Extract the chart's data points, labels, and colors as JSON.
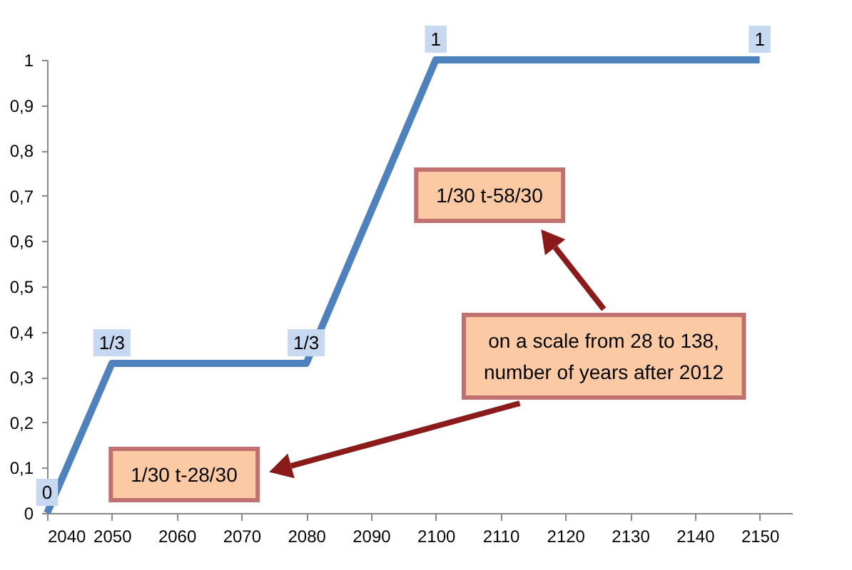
{
  "chart_data": {
    "type": "line",
    "x": [
      2040,
      2050,
      2080,
      2100,
      2150
    ],
    "series": [
      {
        "color": "#4f81bd",
        "values": [
          0,
          0.33,
          0.33,
          1,
          1
        ],
        "value_labels": [
          "0",
          "1/3",
          "1/3",
          "1",
          "1"
        ]
      }
    ],
    "xlim": [
      2040,
      2155
    ],
    "xticks": [
      2040,
      2050,
      2060,
      2070,
      2080,
      2090,
      2100,
      2110,
      2120,
      2130,
      2140,
      2150
    ],
    "ylim": [
      0,
      1
    ],
    "yticks": [
      0,
      {
        "value": 0.1,
        "label": "0,1"
      },
      {
        "value": 0.2,
        "label": "0,2"
      },
      {
        "value": 0.3,
        "label": "0,3"
      },
      {
        "value": 0.4,
        "label": "0,4"
      },
      {
        "value": 0.5,
        "label": "0,5"
      },
      {
        "value": 0.6,
        "label": "0,6"
      },
      {
        "value": 0.7,
        "label": "0,7"
      },
      {
        "value": 0.8,
        "label": "0,8"
      },
      {
        "value": 0.9,
        "label": "0,9"
      },
      1
    ],
    "grid": false,
    "marker": "none",
    "line_style": "solid",
    "annotations": [
      "1/30 t-58/30",
      "on a scale from 28 to 138,\nnumber of years after 2012",
      "1/30 t-28/30"
    ]
  }
}
